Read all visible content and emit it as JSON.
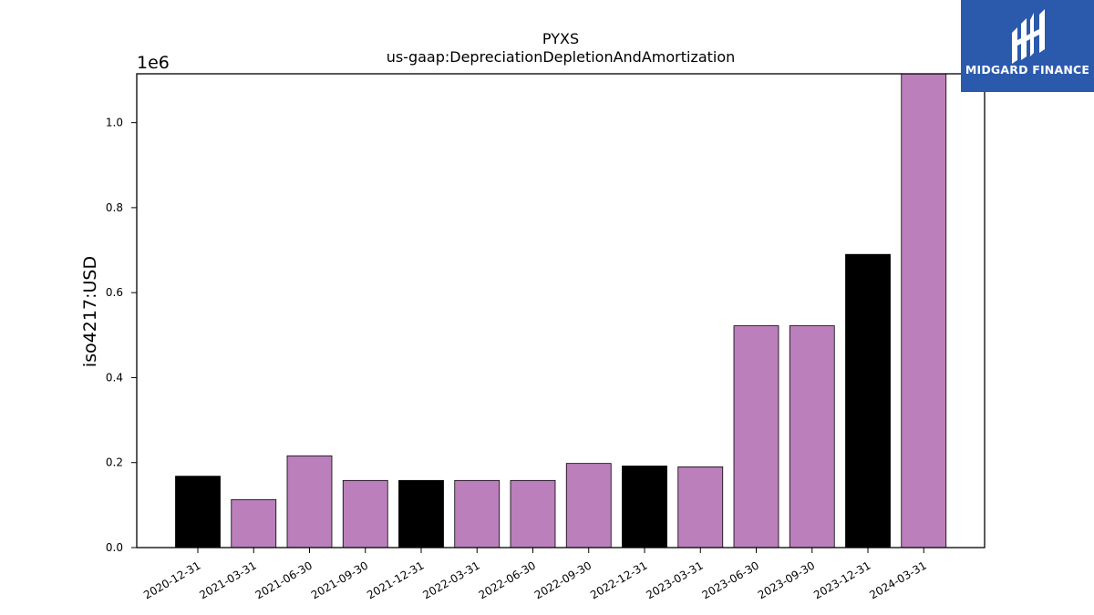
{
  "chart_data": {
    "type": "bar",
    "title": "PYXS",
    "subtitle": "us-gaap:DepreciationDepletionAndAmortization",
    "ylabel": "iso4217:USD",
    "y_scale_label": "1e6",
    "ylim": [
      0,
      1.115
    ],
    "yticks": [
      "0.0",
      "0.2",
      "0.4",
      "0.6",
      "0.8",
      "1.0"
    ],
    "categories": [
      "2020-12-31",
      "2021-03-31",
      "2021-06-30",
      "2021-09-30",
      "2021-12-31",
      "2022-03-31",
      "2022-06-30",
      "2022-09-30",
      "2022-12-31",
      "2023-03-31",
      "2023-06-30",
      "2023-09-30",
      "2023-12-31",
      "2024-03-31"
    ],
    "values": [
      0.168,
      0.113,
      0.216,
      0.158,
      0.158,
      0.158,
      0.158,
      0.198,
      0.192,
      0.19,
      0.522,
      0.522,
      0.69,
      1.115
    ],
    "bar_colors": [
      "#000000",
      "#bb7fbc",
      "#bb7fbc",
      "#bb7fbc",
      "#000000",
      "#bb7fbc",
      "#bb7fbc",
      "#bb7fbc",
      "#000000",
      "#bb7fbc",
      "#bb7fbc",
      "#bb7fbc",
      "#000000",
      "#bb7fbc"
    ],
    "grid": false,
    "legend": "none"
  },
  "logo": {
    "text": "MIDGARD FINANCE",
    "background": "#2b5aad"
  }
}
